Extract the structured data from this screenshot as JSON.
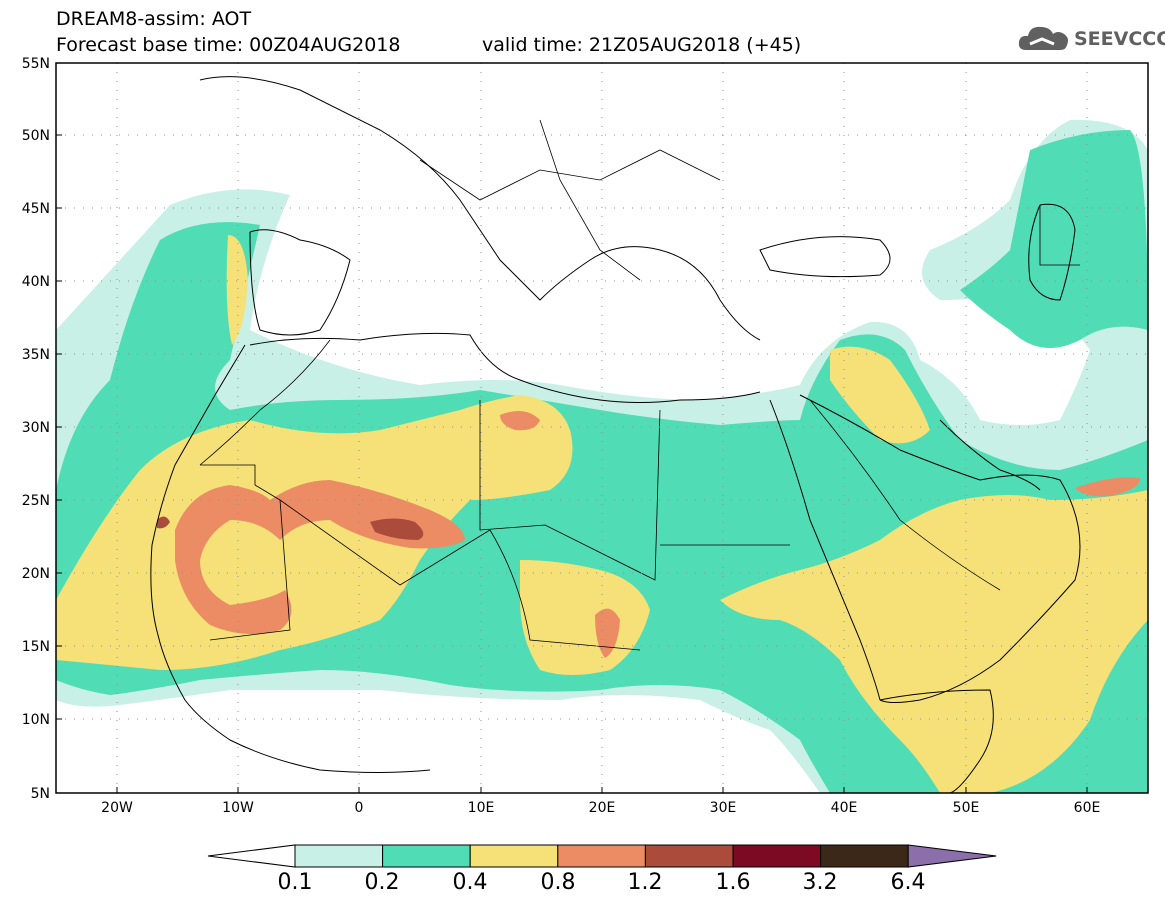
{
  "title": {
    "line1": "DREAM8-assim: AOT",
    "line2_left": "Forecast base time: 00Z04AUG2018",
    "line2_right": "valid time: 21Z05AUG2018 (+45)"
  },
  "logo": {
    "text": "SEEVCCC",
    "icon": "cloud-icon"
  },
  "axes": {
    "lat_labels": [
      "55N",
      "50N",
      "45N",
      "40N",
      "35N",
      "30N",
      "25N",
      "20N",
      "15N",
      "10N",
      "5N"
    ],
    "lon_labels": [
      "20W",
      "10W",
      "0",
      "10E",
      "20E",
      "30E",
      "40E",
      "50E",
      "60E"
    ]
  },
  "colorbar": {
    "labels": [
      "0.1",
      "0.2",
      "0.4",
      "0.8",
      "1.2",
      "1.6",
      "3.2",
      "6.4"
    ],
    "colors": [
      "#ffffff",
      "#c8f0e6",
      "#50dcb4",
      "#f5e178",
      "#eb8c64",
      "#aa4b3c",
      "#7d0a23",
      "#3c2819",
      "#8c6eaa"
    ]
  },
  "colors": {
    "c1": "#c8f0e6",
    "c2": "#50dcb4",
    "c3": "#f5e178",
    "c4": "#eb8c64",
    "c5": "#aa4b3c"
  }
}
